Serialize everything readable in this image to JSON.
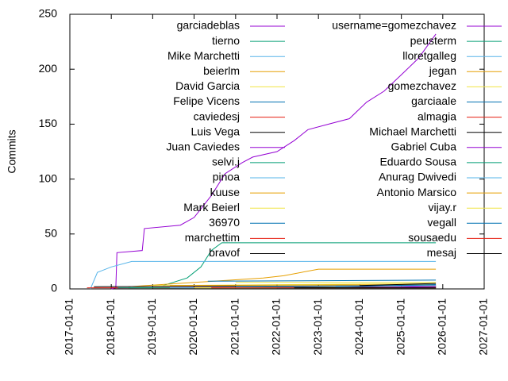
{
  "chart_data": {
    "type": "line",
    "ylabel": "Commits",
    "xlim": [
      "2017-01-01",
      "2027-01-01"
    ],
    "ylim": [
      0,
      250
    ],
    "xticks": [
      "2017-01-01",
      "2018-01-01",
      "2019-01-01",
      "2020-01-01",
      "2021-01-01",
      "2022-01-01",
      "2023-01-01",
      "2024-01-01",
      "2025-01-01",
      "2026-01-01",
      "2027-01-01"
    ],
    "yticks": [
      0,
      50,
      100,
      150,
      200,
      250
    ],
    "series": [
      {
        "name": "garciadeblas",
        "color": "#9400d3",
        "x": [
          "2018-01-01",
          "2018-02-10",
          "2018-02-20",
          "2018-10-01",
          "2018-10-20",
          "2019-09-01",
          "2020-01-01",
          "2020-06-01",
          "2020-10-01",
          "2021-03-01",
          "2021-06-01",
          "2022-01-01",
          "2022-06-01",
          "2022-10-01",
          "2023-04-01",
          "2023-10-01",
          "2024-03-01",
          "2024-08-01",
          "2025-01-01",
          "2025-06-01",
          "2025-11-01"
        ],
        "values": [
          0,
          1,
          33,
          35,
          55,
          58,
          65,
          85,
          105,
          115,
          120,
          125,
          135,
          145,
          150,
          155,
          170,
          180,
          195,
          210,
          232
        ]
      },
      {
        "name": "tierno",
        "color": "#009e73",
        "x": [
          "2019-04-01",
          "2019-11-01",
          "2020-03-01",
          "2020-06-01",
          "2020-09-01",
          "2025-11-01"
        ],
        "values": [
          3,
          10,
          20,
          35,
          42,
          42
        ]
      },
      {
        "name": "Mike Marchetti",
        "color": "#56b4e9",
        "x": [
          "2017-07-01",
          "2017-09-01",
          "2018-01-01",
          "2018-07-01",
          "2025-11-01"
        ],
        "values": [
          0,
          15,
          20,
          25,
          25
        ]
      },
      {
        "name": "beierlm",
        "color": "#e69f00",
        "x": [
          "2018-06-01",
          "2021-09-01",
          "2022-03-01",
          "2023-01-01",
          "2025-11-01"
        ],
        "values": [
          2,
          10,
          12,
          18,
          18
        ]
      },
      {
        "name": "David Garcia",
        "color": "#f0e442",
        "x": [
          "2019-01-01",
          "2025-11-01"
        ],
        "values": [
          3,
          5
        ]
      },
      {
        "name": "Felipe Vicens",
        "color": "#0072b2",
        "x": [
          "2020-05-01",
          "2025-11-01"
        ],
        "values": [
          7,
          8
        ]
      },
      {
        "name": "caviedesj",
        "color": "#e51e10",
        "x": [
          "2018-01-01",
          "2025-11-01"
        ],
        "values": [
          1,
          2
        ]
      },
      {
        "name": "Luis Vega",
        "color": "#000000",
        "x": [
          "2017-08-01",
          "2025-11-01"
        ],
        "values": [
          2,
          3
        ]
      },
      {
        "name": "Juan Caviedes",
        "color": "#9400d3",
        "x": [
          "2018-01-01",
          "2025-11-01"
        ],
        "values": [
          1,
          2
        ]
      },
      {
        "name": "selvi.j",
        "color": "#009e73",
        "x": [
          "2019-06-01",
          "2025-11-01"
        ],
        "values": [
          1,
          2
        ]
      },
      {
        "name": "pinoa",
        "color": "#56b4e9",
        "x": [
          "2020-01-01",
          "2025-11-01"
        ],
        "values": [
          1,
          2
        ]
      },
      {
        "name": "kuuse",
        "color": "#e69f00",
        "x": [
          "2019-06-01",
          "2025-11-01"
        ],
        "values": [
          3,
          4
        ]
      },
      {
        "name": "Mark Beierl",
        "color": "#f0e442",
        "x": [
          "2021-01-01",
          "2025-11-01"
        ],
        "values": [
          6,
          6
        ]
      },
      {
        "name": "36970",
        "color": "#0072b2",
        "x": [
          "2021-06-01",
          "2025-11-01"
        ],
        "values": [
          1,
          1
        ]
      },
      {
        "name": "marchettim",
        "color": "#e51e10",
        "x": [
          "2017-06-01",
          "2025-11-01"
        ],
        "values": [
          1,
          1
        ]
      },
      {
        "name": "bravof",
        "color": "#000000",
        "x": [
          "2020-06-01",
          "2025-11-01"
        ],
        "values": [
          1,
          2
        ]
      },
      {
        "name": "username=gomezchavez",
        "color": "#9400d3",
        "x": [
          "2024-06-01",
          "2025-11-01"
        ],
        "values": [
          1,
          3
        ]
      },
      {
        "name": "peusterm",
        "color": "#009e73",
        "x": [
          "2018-03-01",
          "2025-11-01"
        ],
        "values": [
          1,
          1
        ]
      },
      {
        "name": "lloretgalleg",
        "color": "#56b4e9",
        "x": [
          "2021-01-01",
          "2025-11-01"
        ],
        "values": [
          2,
          3
        ]
      },
      {
        "name": "jegan",
        "color": "#e69f00",
        "x": [
          "2022-06-01",
          "2025-11-01"
        ],
        "values": [
          1,
          2
        ]
      },
      {
        "name": "gomezchavez",
        "color": "#f0e442",
        "x": [
          "2023-01-01",
          "2025-11-01"
        ],
        "values": [
          1,
          2
        ]
      },
      {
        "name": "garciaale",
        "color": "#0072b2",
        "x": [
          "2023-06-01",
          "2025-11-01"
        ],
        "values": [
          2,
          4
        ]
      },
      {
        "name": "almagia",
        "color": "#e51e10",
        "x": [
          "2019-01-01",
          "2025-11-01"
        ],
        "values": [
          1,
          1
        ]
      },
      {
        "name": "Michael Marchetti",
        "color": "#000000",
        "x": [
          "2024-01-01",
          "2025-11-01"
        ],
        "values": [
          3,
          5
        ]
      },
      {
        "name": "Gabriel Cuba",
        "color": "#9400d3",
        "x": [
          "2023-01-01",
          "2025-11-01"
        ],
        "values": [
          1,
          2
        ]
      },
      {
        "name": "Eduardo Sousa",
        "color": "#009e73",
        "x": [
          "2018-06-01",
          "2025-11-01"
        ],
        "values": [
          1,
          1
        ]
      },
      {
        "name": "Anurag Dwivedi",
        "color": "#56b4e9",
        "x": [
          "2019-06-01",
          "2025-11-01"
        ],
        "values": [
          1,
          1
        ]
      },
      {
        "name": "Antonio Marsico",
        "color": "#e69f00",
        "x": [
          "2020-01-01",
          "2025-11-01"
        ],
        "values": [
          1,
          1
        ]
      },
      {
        "name": "vijay.r",
        "color": "#f0e442",
        "x": [
          "2020-01-01",
          "2025-11-01"
        ],
        "values": [
          1,
          1
        ]
      },
      {
        "name": "vegall",
        "color": "#0072b2",
        "x": [
          "2022-01-01",
          "2025-11-01"
        ],
        "values": [
          1,
          1
        ]
      },
      {
        "name": "sousaedu",
        "color": "#e51e10",
        "x": [
          "2020-06-01",
          "2025-11-01"
        ],
        "values": [
          1,
          1
        ]
      },
      {
        "name": "mesaj",
        "color": "#000000",
        "x": [
          "2022-06-01",
          "2025-11-01"
        ],
        "values": [
          1,
          1
        ]
      }
    ]
  }
}
